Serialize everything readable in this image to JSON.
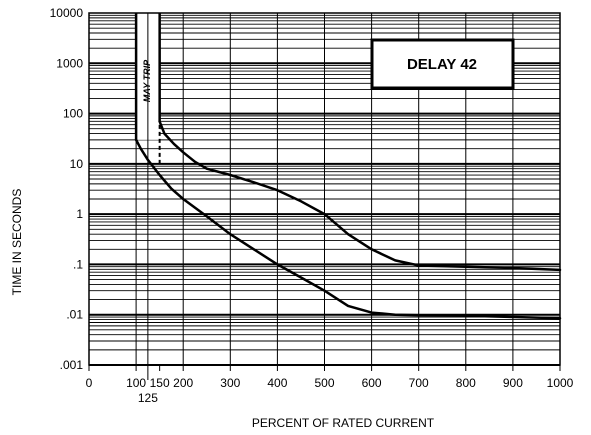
{
  "chart_data": {
    "type": "line",
    "title": "",
    "annotation": "DELAY 42",
    "may_trip_label": "MAY TRIP",
    "xlabel": "PERCENT OF RATED CURRENT",
    "ylabel": "TIME IN SECONDS",
    "xlim": [
      0,
      1000
    ],
    "ylim": [
      0.001,
      10000
    ],
    "y_scale": "log",
    "grid": true,
    "x_ticks": [
      0,
      100,
      150,
      200,
      300,
      400,
      500,
      600,
      700,
      800,
      900,
      1000
    ],
    "x_tick_labels": [
      "0",
      "100",
      "150",
      "200",
      "300",
      "400",
      "500",
      "600",
      "700",
      "800",
      "900",
      "1000"
    ],
    "x_extra_tick": {
      "value": 125,
      "label": "125"
    },
    "y_ticks": [
      0.001,
      0.01,
      0.1,
      1,
      10,
      100,
      1000,
      10000
    ],
    "y_tick_labels": [
      ".001",
      ".01",
      ".1",
      "1",
      "10",
      "100",
      "1000",
      "10000"
    ],
    "may_trip_band": {
      "x_start": 100,
      "x_end": 150,
      "y_top": 10000
    },
    "series": [
      {
        "x": [
          150,
          160,
          180,
          200,
          225,
          250,
          300,
          350,
          400,
          450,
          500,
          550,
          600,
          650,
          700,
          800,
          900,
          1000
        ],
        "y": [
          70,
          40,
          25,
          17,
          11,
          8,
          6,
          4.3,
          3,
          1.8,
          1,
          0.4,
          0.2,
          0.12,
          0.095,
          0.09,
          0.085,
          0.078
        ]
      },
      {
        "x": [
          100,
          110,
          125,
          150,
          175,
          200,
          250,
          300,
          350,
          400,
          450,
          500,
          550,
          600,
          650,
          700,
          800,
          900,
          1000
        ],
        "y": [
          30,
          20,
          12,
          6,
          3.2,
          2,
          0.9,
          0.4,
          0.2,
          0.1,
          0.055,
          0.03,
          0.015,
          0.011,
          0.01,
          0.0098,
          0.0095,
          0.009,
          0.0085
        ]
      }
    ],
    "dashed_segment": {
      "x": 150,
      "y": [
        10,
        70
      ]
    }
  }
}
